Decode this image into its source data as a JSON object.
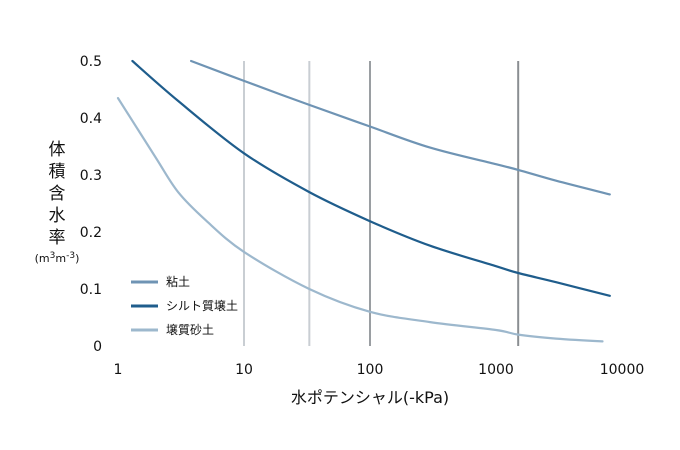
{
  "chart_data": {
    "type": "line",
    "xscale": "log",
    "xlim": [
      1,
      10000
    ],
    "ylim": [
      0,
      0.5
    ],
    "x_ticks": [
      "1",
      "10",
      "100",
      "1000",
      "10000"
    ],
    "y_ticks": [
      "0",
      "0.1",
      "0.2",
      "0.3",
      "0.4",
      "0.5"
    ],
    "xlabel": "水ポテンシャル(-kPa)",
    "ylabel": "体積含水率",
    "ylabel_unit": {
      "prefix": "(m",
      "sup1": "3",
      "mid": "m",
      "sup2": "-3",
      "suffix": ")"
    },
    "grid": "vertical lines at selected x values",
    "reference_lines": [
      {
        "x": 10,
        "color": "#c9ced3"
      },
      {
        "x": 33,
        "color": "#c9ced3"
      },
      {
        "x": 100,
        "color": "#9a9ea2"
      },
      {
        "x": 1500,
        "color": "#8a8e92"
      }
    ],
    "legend_position": "bottom-left",
    "series": [
      {
        "name": "粘土",
        "color": "#6f94b4",
        "x": [
          3.8,
          10,
          33,
          100,
          300,
          1000,
          1500,
          3000,
          8000
        ],
        "y": [
          0.5,
          0.465,
          0.423,
          0.385,
          0.348,
          0.319,
          0.309,
          0.29,
          0.266
        ]
      },
      {
        "name": "シルト質壌土",
        "color": "#1f5d8c",
        "x": [
          1.3,
          3,
          10,
          33,
          100,
          300,
          1000,
          1500,
          3000,
          8000
        ],
        "y": [
          0.5,
          0.43,
          0.338,
          0.27,
          0.219,
          0.176,
          0.14,
          0.128,
          0.112,
          0.088
        ]
      },
      {
        "name": "壌質砂土",
        "color": "#9db8cd",
        "x": [
          1,
          2,
          3,
          5,
          10,
          33,
          100,
          300,
          1000,
          1500,
          3000,
          7000
        ],
        "y": [
          0.435,
          0.33,
          0.27,
          0.22,
          0.165,
          0.1,
          0.06,
          0.042,
          0.028,
          0.02,
          0.013,
          0.008
        ]
      }
    ]
  }
}
